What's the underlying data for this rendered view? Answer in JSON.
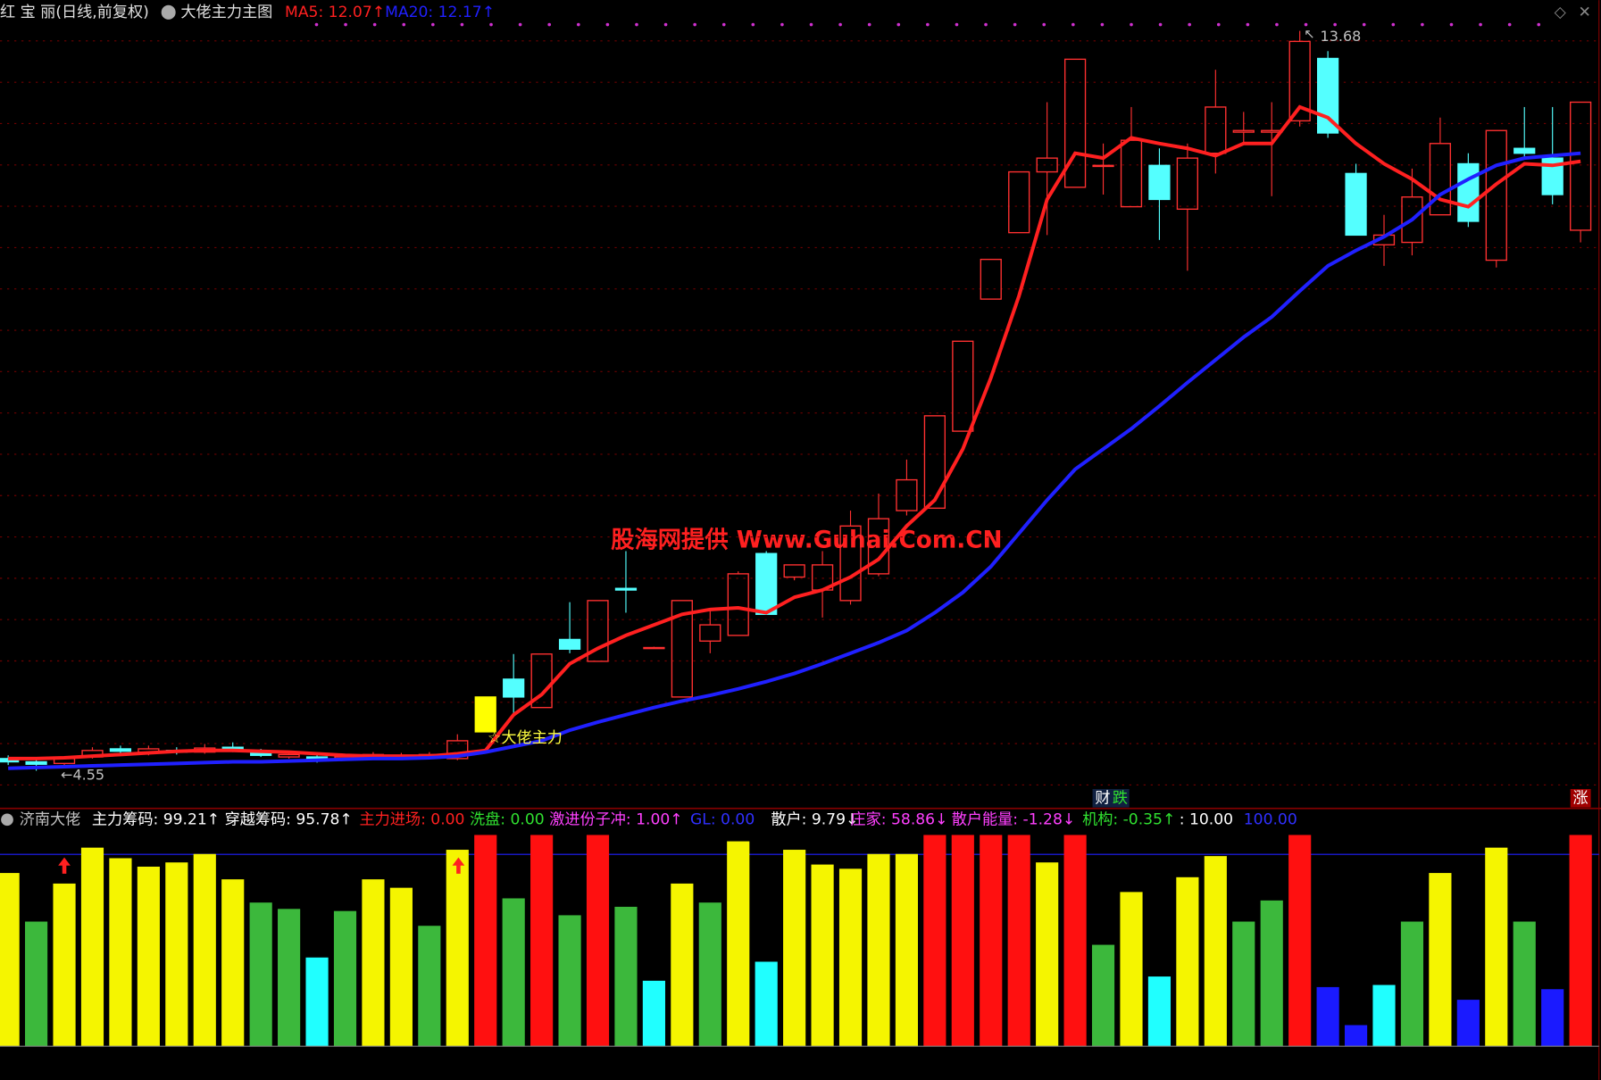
{
  "header": {
    "stock": "红 宝 丽(日线,前复权)",
    "indicator": "大佬主力主图"
  },
  "watermark": "股海网提供 Www.Guhai.Com.CN",
  "chart_data": [
    {
      "type": "candlestick",
      "ylim": [
        4.11,
        14.06
      ],
      "up_color": "#ff3030",
      "down_color": "#54ffff",
      "signal": {
        "index": 17,
        "label": "☆大佬主力",
        "color": "#ffff00"
      },
      "low_label": "←4.55",
      "high_label": "13.68",
      "open": [
        4.7,
        4.66,
        4.64,
        4.72,
        4.82,
        4.78,
        4.8,
        4.78,
        4.84,
        4.78,
        4.72,
        4.72,
        4.7,
        4.72,
        4.74,
        4.74,
        4.7,
        5.03,
        5.68,
        5.33,
        6.17,
        5.9,
        6.8,
        6.07,
        5.46,
        6.15,
        6.22,
        7.23,
        6.94,
        6.78,
        6.65,
        6.98,
        7.76,
        7.79,
        8.74,
        10.37,
        11.19,
        11.94,
        11.75,
        12.02,
        11.51,
        12.02,
        11.48,
        12.17,
        12.43,
        12.43,
        12.57,
        13.34,
        11.92,
        11.04,
        11.07,
        11.41,
        12.04,
        10.85,
        12.23,
        12.11,
        11.22
      ],
      "close": [
        4.66,
        4.63,
        4.7,
        4.8,
        4.79,
        4.82,
        4.78,
        4.83,
        4.8,
        4.74,
        4.75,
        4.68,
        4.72,
        4.75,
        4.74,
        4.75,
        4.92,
        5.46,
        5.46,
        5.99,
        6.05,
        6.65,
        6.78,
        6.07,
        6.65,
        6.35,
        6.98,
        6.48,
        7.09,
        7.09,
        7.57,
        7.66,
        8.14,
        8.93,
        9.85,
        10.86,
        11.94,
        12.11,
        13.33,
        12.02,
        12.33,
        11.6,
        12.11,
        12.74,
        12.45,
        12.45,
        13.55,
        12.42,
        11.16,
        11.16,
        11.63,
        12.29,
        11.33,
        12.45,
        12.17,
        11.66,
        12.8
      ],
      "high": [
        4.74,
        4.7,
        4.73,
        4.84,
        4.86,
        4.86,
        4.84,
        4.88,
        4.9,
        4.82,
        4.78,
        4.76,
        4.76,
        4.78,
        4.77,
        4.78,
        5.0,
        5.46,
        5.99,
        5.99,
        6.63,
        6.65,
        7.26,
        6.08,
        6.65,
        6.56,
        7.01,
        7.26,
        7.09,
        7.26,
        7.76,
        7.97,
        8.39,
        8.93,
        9.85,
        10.86,
        11.94,
        12.8,
        13.33,
        12.29,
        12.74,
        12.23,
        12.29,
        13.2,
        12.68,
        12.8,
        13.68,
        13.43,
        12.04,
        11.41,
        11.98,
        12.61,
        12.17,
        12.45,
        12.74,
        12.74,
        12.8
      ],
      "low": [
        4.62,
        4.55,
        4.62,
        4.7,
        4.76,
        4.74,
        4.75,
        4.76,
        4.78,
        4.72,
        4.7,
        4.65,
        4.68,
        4.7,
        4.72,
        4.72,
        4.68,
        5.03,
        5.24,
        5.33,
        6.0,
        5.9,
        6.5,
        6.06,
        5.46,
        6.0,
        6.22,
        6.48,
        6.9,
        6.44,
        6.6,
        6.95,
        7.7,
        7.79,
        8.74,
        10.37,
        11.19,
        11.16,
        11.75,
        11.66,
        11.51,
        11.1,
        10.72,
        11.92,
        12.29,
        11.64,
        12.5,
        12.36,
        11.16,
        10.78,
        10.91,
        11.41,
        11.26,
        10.76,
        12.1,
        11.54,
        11.07
      ],
      "series": [
        {
          "label": "MA5: 12.07↑",
          "color": "#ff2020",
          "values": [
            4.7,
            4.7,
            4.71,
            4.73,
            4.75,
            4.77,
            4.79,
            4.8,
            4.8,
            4.79,
            4.78,
            4.76,
            4.74,
            4.73,
            4.73,
            4.73,
            4.76,
            4.8,
            5.24,
            5.49,
            5.87,
            6.06,
            6.22,
            6.35,
            6.48,
            6.54,
            6.56,
            6.5,
            6.69,
            6.78,
            6.94,
            7.16,
            7.57,
            7.89,
            8.52,
            9.4,
            10.41,
            11.6,
            12.17,
            12.11,
            12.36,
            12.29,
            12.23,
            12.14,
            12.29,
            12.29,
            12.74,
            12.61,
            12.29,
            12.04,
            11.85,
            11.6,
            11.51,
            11.79,
            12.04,
            12.02,
            12.07
          ]
        },
        {
          "label": "MA20: 12.17↑",
          "color": "#2020ff",
          "values": [
            4.58,
            4.59,
            4.6,
            4.61,
            4.62,
            4.63,
            4.64,
            4.65,
            4.66,
            4.66,
            4.67,
            4.68,
            4.69,
            4.7,
            4.7,
            4.71,
            4.73,
            4.78,
            4.85,
            4.92,
            5.05,
            5.15,
            5.24,
            5.33,
            5.41,
            5.48,
            5.56,
            5.65,
            5.75,
            5.87,
            6.0,
            6.13,
            6.28,
            6.5,
            6.75,
            7.07,
            7.48,
            7.89,
            8.27,
            8.52,
            8.77,
            9.05,
            9.34,
            9.62,
            9.9,
            10.15,
            10.47,
            10.78,
            10.97,
            11.14,
            11.35,
            11.66,
            11.85,
            12.02,
            12.11,
            12.14,
            12.17
          ]
        }
      ]
    },
    {
      "type": "bar",
      "title": "济南大佬",
      "ylim": [
        0,
        100
      ],
      "palette": {
        "Y": "#f5f500",
        "G": "#3cb83c",
        "C": "#20ffff",
        "R": "#ff1010",
        "B": "#1a1aff"
      },
      "values": [
        82,
        59,
        77,
        94,
        89,
        85,
        87,
        91,
        79,
        68,
        65,
        42,
        64,
        79,
        75,
        57,
        93,
        100,
        70,
        100,
        62,
        100,
        66,
        31,
        77,
        68,
        97,
        40,
        93,
        86,
        84,
        91,
        91,
        100,
        100,
        100,
        100,
        87,
        100,
        48,
        73,
        33,
        80,
        90,
        59,
        69,
        100,
        28,
        10,
        29,
        59,
        82,
        22,
        94,
        59,
        27,
        100
      ],
      "colors": [
        "Y",
        "G",
        "Y",
        "Y",
        "Y",
        "Y",
        "Y",
        "Y",
        "Y",
        "G",
        "G",
        "C",
        "G",
        "Y",
        "Y",
        "G",
        "Y",
        "R",
        "G",
        "R",
        "G",
        "R",
        "G",
        "C",
        "Y",
        "G",
        "Y",
        "C",
        "Y",
        "Y",
        "Y",
        "Y",
        "Y",
        "R",
        "R",
        "R",
        "R",
        "Y",
        "R",
        "G",
        "Y",
        "C",
        "Y",
        "Y",
        "G",
        "G",
        "R",
        "B",
        "B",
        "C",
        "G",
        "Y",
        "B",
        "Y",
        "G",
        "B",
        "R"
      ],
      "legend": [
        {
          "label": "主力筹码: 99.21↑",
          "color": "#ffffff"
        },
        {
          "label": "穿越筹码: 95.78↑",
          "color": "#ffffff"
        },
        {
          "label": "主力进场: 0.00",
          "color": "#ff2020"
        },
        {
          "label": "洗盘: 0.00",
          "color": "#30e030"
        },
        {
          "label": "激进份子冲: 1.00↑",
          "color": "#ff40ff"
        },
        {
          "label": "GL: 0.00",
          "color": "#3030ff"
        },
        {
          "label": "散户: 9.79↓",
          "color": "#ffffff"
        },
        {
          "label": "庄家: 58.86↓",
          "color": "#ff40ff"
        },
        {
          "label": "散户能量: -1.28↓",
          "color": "#ff40ff"
        },
        {
          "label": "机构: -0.35↑",
          "color": "#30e030"
        },
        {
          "label": ": 10.00",
          "color": "#ffffff"
        },
        {
          "label": "100.00",
          "color": "#3030ff"
        }
      ]
    }
  ],
  "footer": {
    "cai": "财",
    "die": "跌",
    "zhang": "涨"
  }
}
